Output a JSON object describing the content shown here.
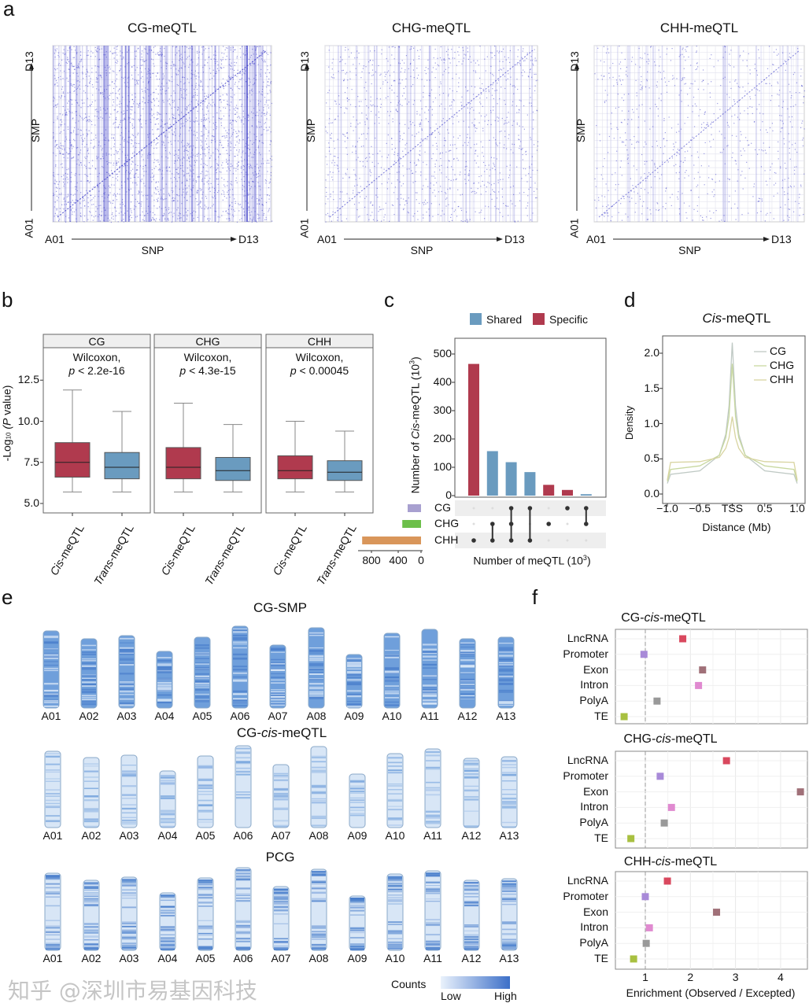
{
  "panel_labels": {
    "a": "a",
    "b": "b",
    "c": "c",
    "d": "d",
    "e": "e",
    "f": "f"
  },
  "watermark": "知乎 @深圳市易基因科技",
  "chart_data": [
    {
      "type": "heatmap",
      "panel": "a",
      "plots": [
        {
          "title": "CG-meQTL",
          "ylabel": "SMP",
          "xlabel": "SNP",
          "axis_start": "A01",
          "axis_end": "D13",
          "density": "high",
          "color": "#3a3ac8"
        },
        {
          "title": "CHG-meQTL",
          "ylabel": "SMP",
          "xlabel": "SNP",
          "axis_start": "A01",
          "axis_end": "D13",
          "density": "medium",
          "color": "#3a3ac8"
        },
        {
          "title": "CHH-meQTL",
          "ylabel": "SMP",
          "xlabel": "SNP",
          "axis_start": "A01",
          "axis_end": "D13",
          "density": "low",
          "color": "#3a3ac8"
        }
      ]
    },
    {
      "type": "box",
      "panel": "b",
      "ylabel": "-Log",
      "ylabel_sub": "10",
      "ylabel_tail": "(P value)",
      "ylim": [
        5.0,
        14.5
      ],
      "yticks": [
        "5.0",
        "7.5",
        "10.0",
        "12.5"
      ],
      "categories": [
        "Cis-meQTL",
        "Trans-meQTL"
      ],
      "colors": {
        "Cis-meQTL": "#b03a4e",
        "Trans-meQTL": "#6a9bbf"
      },
      "facets": [
        {
          "name": "CG",
          "test": "Wilcoxon,",
          "p": "p < 2.2e-16",
          "boxes": [
            {
              "min": 5.7,
              "q1": 6.6,
              "median": 7.5,
              "q3": 8.7,
              "max": 11.9
            },
            {
              "min": 5.7,
              "q1": 6.5,
              "median": 7.2,
              "q3": 8.1,
              "max": 10.6
            }
          ]
        },
        {
          "name": "CHG",
          "test": "Wilcoxon,",
          "p": "p < 4.3e-15",
          "boxes": [
            {
              "min": 5.7,
              "q1": 6.5,
              "median": 7.2,
              "q3": 8.4,
              "max": 11.1
            },
            {
              "min": 5.7,
              "q1": 6.4,
              "median": 7.0,
              "q3": 7.8,
              "max": 9.8
            }
          ]
        },
        {
          "name": "CHH",
          "test": "Wilcoxon,",
          "p": "p < 0.00045",
          "boxes": [
            {
              "min": 5.7,
              "q1": 6.5,
              "median": 7.0,
              "q3": 7.9,
              "max": 10.0
            },
            {
              "min": 5.7,
              "q1": 6.4,
              "median": 6.9,
              "q3": 7.6,
              "max": 9.4
            }
          ]
        }
      ]
    },
    {
      "type": "bar",
      "panel": "c",
      "ylabel": "Number of Cis-meQTL (10³)",
      "ylim": [
        0,
        560
      ],
      "yticks": [
        "0",
        "100",
        "200",
        "300",
        "400",
        "500"
      ],
      "legend": [
        {
          "name": "Shared",
          "color": "#6a9bbf"
        },
        {
          "name": "Specific",
          "color": "#b03a4e"
        }
      ],
      "intersections": [
        {
          "value": 465,
          "type": "Specific",
          "sets": [
            "CHH"
          ]
        },
        {
          "value": 157,
          "type": "Shared",
          "sets": [
            "CHG",
            "CHH"
          ]
        },
        {
          "value": 118,
          "type": "Shared",
          "sets": [
            "CG",
            "CHG",
            "CHH"
          ]
        },
        {
          "value": 83,
          "type": "Shared",
          "sets": [
            "CG",
            "CHH"
          ]
        },
        {
          "value": 38,
          "type": "Specific",
          "sets": [
            "CHG"
          ]
        },
        {
          "value": 20,
          "type": "Specific",
          "sets": [
            "CG"
          ]
        },
        {
          "value": 5,
          "type": "Shared",
          "sets": [
            "CG",
            "CHG"
          ]
        }
      ],
      "sets": [
        {
          "name": "CG",
          "size": 200,
          "color": "#a8a0d0"
        },
        {
          "name": "CHG",
          "size": 280,
          "color": "#6cbf4a"
        },
        {
          "name": "CHH",
          "size": 880,
          "color": "#d9965a"
        }
      ],
      "set_axis_ticks": [
        "800",
        "400",
        "0"
      ],
      "xlabel": "Number of meQTL (10³)"
    },
    {
      "type": "line",
      "panel": "d",
      "title": "Cis-meQTL",
      "xlabel": "Distance (Mb)",
      "ylabel": "Density",
      "xlim": [
        -1,
        1
      ],
      "ylim": [
        0,
        2.2
      ],
      "xticks": [
        "−1.0",
        "−0.5",
        "TSS",
        "0.5",
        "1.0"
      ],
      "yticks": [
        "0.0",
        "0.5",
        "1.0",
        "1.5",
        "2.0"
      ],
      "x": [
        -1,
        -0.95,
        -0.5,
        -0.2,
        -0.1,
        -0.05,
        0,
        0.05,
        0.1,
        0.2,
        0.5,
        0.95,
        1
      ],
      "series": [
        {
          "name": "CG",
          "color": "#bfc9c4",
          "values": [
            0.15,
            0.28,
            0.33,
            0.55,
            0.85,
            1.25,
            2.15,
            1.25,
            0.85,
            0.55,
            0.33,
            0.28,
            0.15
          ]
        },
        {
          "name": "CHG",
          "color": "#c8d8a0",
          "values": [
            0.18,
            0.35,
            0.4,
            0.55,
            0.8,
            1.1,
            1.85,
            1.1,
            0.8,
            0.55,
            0.4,
            0.35,
            0.18
          ]
        },
        {
          "name": "CHH",
          "color": "#d8d4a0",
          "values": [
            0.2,
            0.45,
            0.46,
            0.52,
            0.65,
            0.8,
            1.1,
            0.8,
            0.65,
            0.52,
            0.46,
            0.45,
            0.2
          ]
        }
      ]
    },
    {
      "type": "heatmap",
      "panel": "e",
      "legend_title": "Counts",
      "legend_low": "Low",
      "legend_high": "High",
      "chromosomes": [
        "A01",
        "A02",
        "A03",
        "A04",
        "A05",
        "A06",
        "A07",
        "A08",
        "A09",
        "A10",
        "A11",
        "A12",
        "A13"
      ],
      "tracks": [
        {
          "title": "CG-SMP",
          "style": "dense"
        },
        {
          "title": "CG-cis-meQTL",
          "title_pre": "CG-",
          "title_it": "cis",
          "title_post": "-meQTL",
          "style": "sparse"
        },
        {
          "title": "PCG",
          "style": "ends"
        }
      ]
    },
    {
      "type": "scatter",
      "panel": "f",
      "xlabel": "Enrichment (Observed / Excepted)",
      "xticks": [
        "1",
        "2",
        "3",
        "4"
      ],
      "xlim": [
        0.35,
        4.6
      ],
      "reference_line": 1,
      "categories": [
        "LncRNA",
        "Promoter",
        "Exon",
        "Intron",
        "PolyA",
        "TE"
      ],
      "colors": {
        "LncRNA": "#d9485e",
        "Promoter": "#a88ad8",
        "Exon": "#a07078",
        "Intron": "#e08ad0",
        "PolyA": "#999999",
        "TE": "#a8c040"
      },
      "plots": [
        {
          "pre": "CG-",
          "it": "cis",
          "post": "-meQTL",
          "values": [
            1.83,
            0.97,
            2.27,
            2.18,
            1.26,
            0.53
          ]
        },
        {
          "pre": "CHG-",
          "it": "cis",
          "post": "-meQTL",
          "values": [
            2.8,
            1.33,
            4.44,
            1.58,
            1.42,
            0.68
          ]
        },
        {
          "pre": "CHH-",
          "it": "cis",
          "post": "-meQTL",
          "values": [
            1.49,
            1.0,
            2.58,
            1.09,
            1.02,
            0.74
          ]
        }
      ]
    }
  ]
}
